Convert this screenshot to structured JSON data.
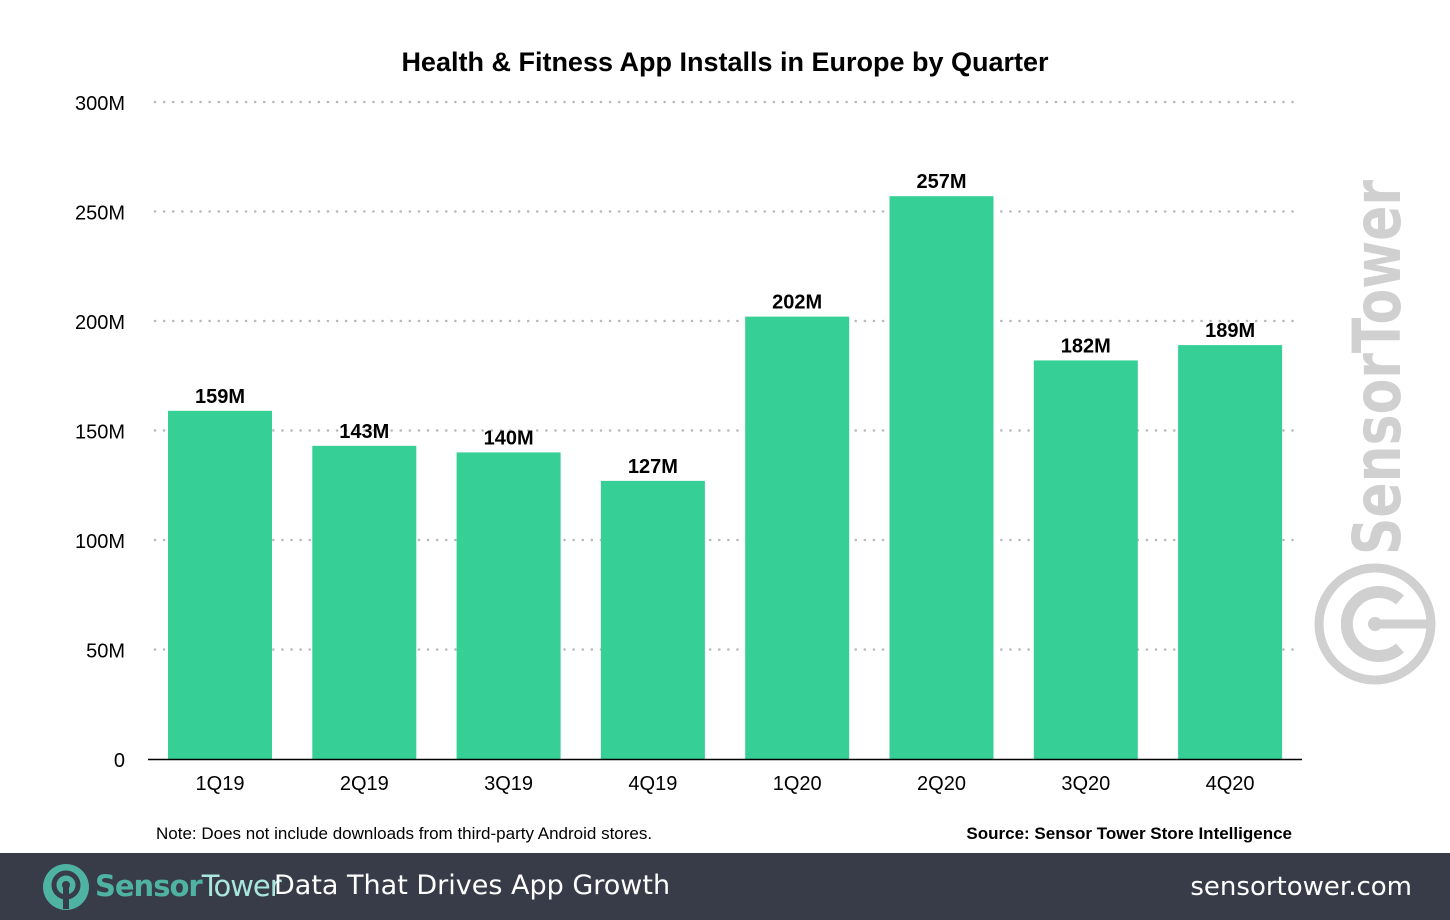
{
  "chart_data": {
    "type": "bar",
    "title": "Health & Fitness App Installs in Europe by Quarter",
    "categories": [
      "1Q19",
      "2Q19",
      "3Q19",
      "4Q19",
      "1Q20",
      "2Q20",
      "3Q20",
      "4Q20"
    ],
    "values": [
      159,
      143,
      140,
      127,
      202,
      257,
      182,
      189
    ],
    "data_labels": [
      "159M",
      "143M",
      "140M",
      "127M",
      "202M",
      "257M",
      "182M",
      "189M"
    ],
    "ylim": [
      0,
      300
    ],
    "yticks": [
      0,
      50,
      100,
      150,
      200,
      250,
      300
    ],
    "ytick_labels": [
      "0",
      "50M",
      "100M",
      "150M",
      "200M",
      "250M",
      "300M"
    ],
    "xlabel": "",
    "ylabel": "",
    "grid": true,
    "bar_color": "#36cf96",
    "note": "Note: Does not include downloads from third-party Android stores.",
    "source": "Source: Sensor Tower Store Intelligence"
  },
  "watermark": "SensorTower",
  "footer": {
    "logo_part1": "Sensor",
    "logo_part2": "Tower",
    "tagline": "Data That Drives App Growth",
    "website": "sensortower.com",
    "background": "#383c48",
    "logo_color": "#4fb3a3"
  }
}
